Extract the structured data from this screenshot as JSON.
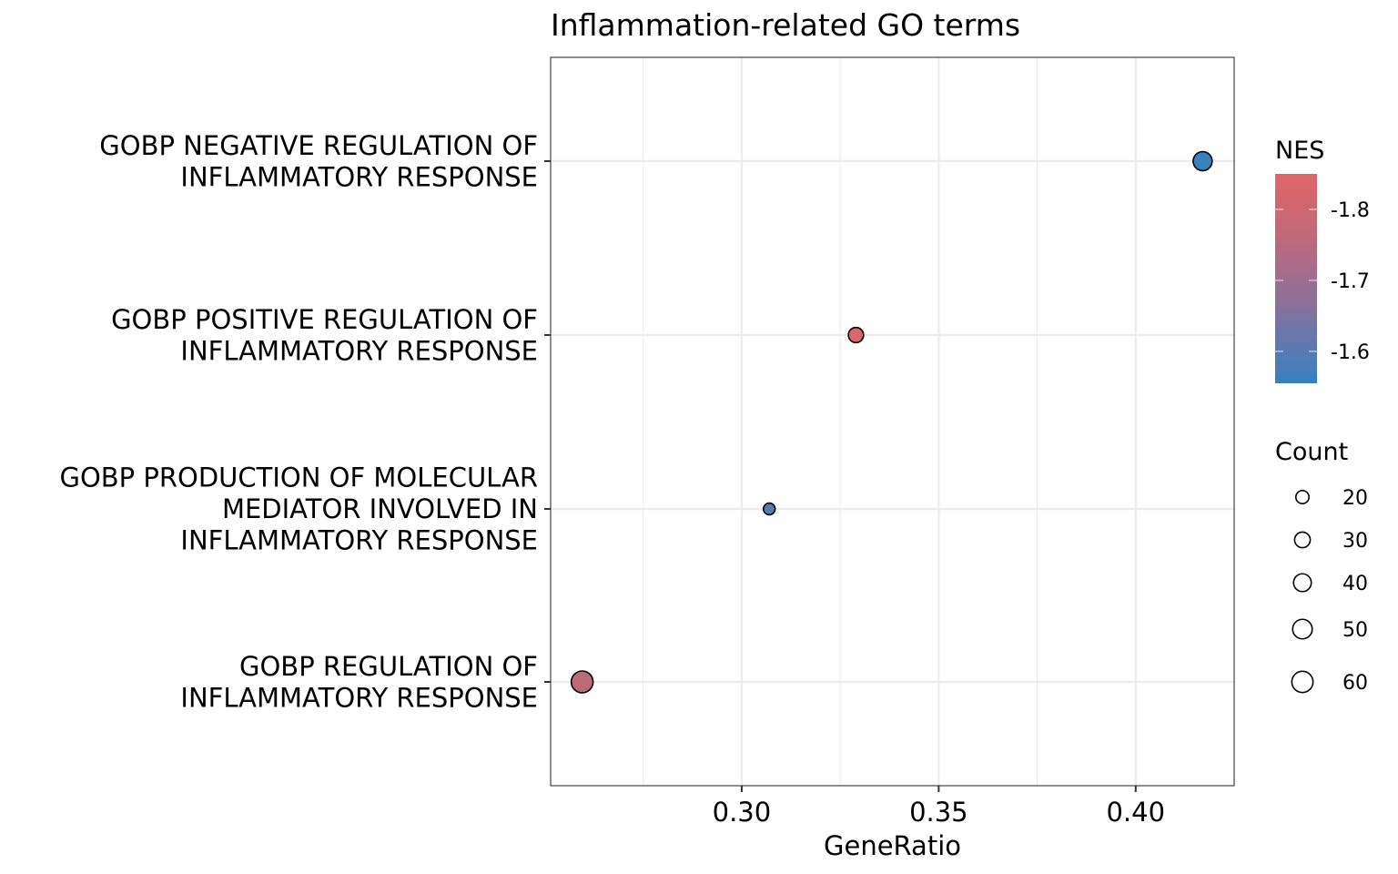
{
  "chart_data": {
    "type": "scatter",
    "title": "Inflammation-related GO terms",
    "xlabel": "GeneRatio",
    "ylabel": "",
    "xlim": [
      0.2515,
      0.425
    ],
    "x_ticks": [
      0.3,
      0.35,
      0.4
    ],
    "x_tick_labels": [
      "0.30",
      "0.35",
      "0.40"
    ],
    "x_minor_ticks": [
      0.275,
      0.325,
      0.375
    ],
    "grid": true,
    "categories": [
      "GOBP NEGATIVE REGULATION OF\nINFLAMMATORY RESPONSE",
      "GOBP POSITIVE REGULATION OF\nINFLAMMATORY RESPONSE",
      "GOBP PRODUCTION OF MOLECULAR\nMEDIATOR INVOLVED IN\nINFLAMMATORY RESPONSE",
      "GOBP REGULATION OF\nINFLAMMATORY RESPONSE"
    ],
    "points": [
      {
        "term_index": 0,
        "gene_ratio": 0.417,
        "count": 47,
        "nes": -1.56
      },
      {
        "term_index": 1,
        "gene_ratio": 0.329,
        "count": 28,
        "nes": -1.84
      },
      {
        "term_index": 2,
        "gene_ratio": 0.307,
        "count": 15,
        "nes": -1.61
      },
      {
        "term_index": 3,
        "gene_ratio": 0.2595,
        "count": 64,
        "nes": -1.79
      }
    ],
    "color_legend": {
      "title": "NES",
      "range": [
        -1.555,
        -1.85
      ],
      "ticks": [
        -1.8,
        -1.7,
        -1.6
      ],
      "tick_labels": [
        "-1.8",
        "-1.7",
        "-1.6"
      ],
      "low_color": "#3680C1",
      "high_color": "#E06666",
      "position": "right"
    },
    "size_legend": {
      "title": "Count",
      "values": [
        20,
        30,
        40,
        50,
        60
      ],
      "labels": [
        "20",
        "30",
        "40",
        "50",
        "60"
      ],
      "position": "right"
    },
    "colors": {
      "negative_end": "#3680C1",
      "positive_end": "#E06666",
      "grid": "#EBEBEB",
      "border": "#333333"
    }
  }
}
